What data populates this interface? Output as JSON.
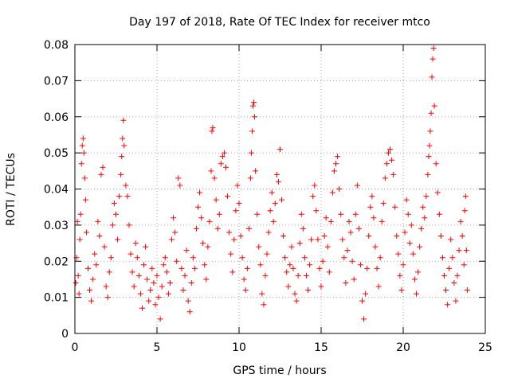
{
  "chart_data": {
    "type": "scatter",
    "title": "Day 197 of 2018, Rate Of TEC Index for receiver mtco",
    "xlabel": "GPS time / hours",
    "ylabel": "ROTI / TECUs",
    "xlim": [
      0,
      25
    ],
    "ylim": [
      0,
      0.08
    ],
    "x_ticks": [
      0,
      5,
      10,
      15,
      20,
      25
    ],
    "y_ticks": [
      0,
      0.01,
      0.02,
      0.03,
      0.04,
      0.05,
      0.06,
      0.07,
      0.08
    ],
    "x_tick_labels": [
      "0",
      "5",
      "10",
      "15",
      "20",
      "25"
    ],
    "y_tick_labels": [
      "0",
      "0.01",
      "0.02",
      "0.03",
      "0.04",
      "0.05",
      "0.06",
      "0.07",
      "0.08"
    ],
    "grid": true,
    "marker": "+",
    "marker_color": "#ff0000",
    "series": [
      {
        "name": "ROTI",
        "points": [
          [
            0.05,
            0.014
          ],
          [
            0.1,
            0.021
          ],
          [
            0.15,
            0.031
          ],
          [
            0.2,
            0.016
          ],
          [
            0.25,
            0.011
          ],
          [
            0.3,
            0.026
          ],
          [
            0.35,
            0.033
          ],
          [
            0.4,
            0.047
          ],
          [
            0.45,
            0.052
          ],
          [
            0.5,
            0.054
          ],
          [
            0.55,
            0.05
          ],
          [
            0.6,
            0.043
          ],
          [
            0.65,
            0.037
          ],
          [
            0.7,
            0.028
          ],
          [
            0.8,
            0.018
          ],
          [
            0.9,
            0.012
          ],
          [
            1.0,
            0.009
          ],
          [
            1.1,
            0.015
          ],
          [
            1.2,
            0.022
          ],
          [
            1.3,
            0.019
          ],
          [
            1.4,
            0.031
          ],
          [
            1.5,
            0.027
          ],
          [
            1.6,
            0.044
          ],
          [
            1.7,
            0.046
          ],
          [
            1.8,
            0.024
          ],
          [
            1.9,
            0.013
          ],
          [
            2.0,
            0.01
          ],
          [
            2.1,
            0.017
          ],
          [
            2.2,
            0.021
          ],
          [
            2.3,
            0.03
          ],
          [
            2.4,
            0.036
          ],
          [
            2.5,
            0.033
          ],
          [
            2.6,
            0.026
          ],
          [
            2.7,
            0.038
          ],
          [
            2.8,
            0.044
          ],
          [
            2.85,
            0.049
          ],
          [
            2.9,
            0.054
          ],
          [
            2.95,
            0.059
          ],
          [
            3.0,
            0.052
          ],
          [
            3.1,
            0.041
          ],
          [
            3.2,
            0.038
          ],
          [
            3.3,
            0.03
          ],
          [
            3.4,
            0.022
          ],
          [
            3.5,
            0.017
          ],
          [
            3.6,
            0.013
          ],
          [
            3.7,
            0.025
          ],
          [
            3.8,
            0.021
          ],
          [
            3.9,
            0.016
          ],
          [
            4.0,
            0.011
          ],
          [
            4.1,
            0.007
          ],
          [
            4.2,
            0.019
          ],
          [
            4.3,
            0.024
          ],
          [
            4.4,
            0.015
          ],
          [
            4.5,
            0.009
          ],
          [
            4.6,
            0.012
          ],
          [
            4.7,
            0.018
          ],
          [
            4.8,
            0.014
          ],
          [
            4.9,
            0.008
          ],
          [
            5.0,
            0.016
          ],
          [
            5.1,
            0.01
          ],
          [
            5.2,
            0.004
          ],
          [
            5.3,
            0.013
          ],
          [
            5.4,
            0.019
          ],
          [
            5.5,
            0.021
          ],
          [
            5.6,
            0.017
          ],
          [
            5.7,
            0.011
          ],
          [
            5.8,
            0.014
          ],
          [
            5.9,
            0.026
          ],
          [
            6.0,
            0.032
          ],
          [
            6.1,
            0.028
          ],
          [
            6.2,
            0.02
          ],
          [
            6.3,
            0.043
          ],
          [
            6.4,
            0.041
          ],
          [
            6.5,
            0.018
          ],
          [
            6.6,
            0.012
          ],
          [
            6.7,
            0.016
          ],
          [
            6.8,
            0.023
          ],
          [
            6.9,
            0.009
          ],
          [
            7.0,
            0.006
          ],
          [
            7.1,
            0.014
          ],
          [
            7.2,
            0.021
          ],
          [
            7.3,
            0.018
          ],
          [
            7.4,
            0.029
          ],
          [
            7.5,
            0.035
          ],
          [
            7.6,
            0.039
          ],
          [
            7.7,
            0.032
          ],
          [
            7.8,
            0.025
          ],
          [
            7.9,
            0.019
          ],
          [
            8.0,
            0.015
          ],
          [
            8.1,
            0.024
          ],
          [
            8.2,
            0.031
          ],
          [
            8.3,
            0.045
          ],
          [
            8.35,
            0.056
          ],
          [
            8.4,
            0.057
          ],
          [
            8.5,
            0.043
          ],
          [
            8.6,
            0.037
          ],
          [
            8.7,
            0.029
          ],
          [
            8.8,
            0.033
          ],
          [
            8.9,
            0.047
          ],
          [
            9.0,
            0.049
          ],
          [
            9.1,
            0.05
          ],
          [
            9.2,
            0.046
          ],
          [
            9.3,
            0.038
          ],
          [
            9.4,
            0.028
          ],
          [
            9.5,
            0.022
          ],
          [
            9.6,
            0.017
          ],
          [
            9.7,
            0.026
          ],
          [
            9.8,
            0.034
          ],
          [
            9.9,
            0.041
          ],
          [
            10.0,
            0.036
          ],
          [
            10.1,
            0.027
          ],
          [
            10.2,
            0.021
          ],
          [
            10.3,
            0.015
          ],
          [
            10.4,
            0.012
          ],
          [
            10.5,
            0.018
          ],
          [
            10.6,
            0.029
          ],
          [
            10.7,
            0.043
          ],
          [
            10.75,
            0.05
          ],
          [
            10.8,
            0.056
          ],
          [
            10.85,
            0.063
          ],
          [
            10.9,
            0.064
          ],
          [
            10.95,
            0.06
          ],
          [
            11.0,
            0.045
          ],
          [
            11.1,
            0.033
          ],
          [
            11.2,
            0.024
          ],
          [
            11.3,
            0.019
          ],
          [
            11.4,
            0.011
          ],
          [
            11.5,
            0.008
          ],
          [
            11.6,
            0.016
          ],
          [
            11.7,
            0.022
          ],
          [
            11.8,
            0.028
          ],
          [
            11.9,
            0.034
          ],
          [
            12.0,
            0.039
          ],
          [
            12.1,
            0.031
          ],
          [
            12.2,
            0.036
          ],
          [
            12.3,
            0.044
          ],
          [
            12.4,
            0.042
          ],
          [
            12.5,
            0.051
          ],
          [
            12.6,
            0.037
          ],
          [
            12.7,
            0.027
          ],
          [
            12.8,
            0.021
          ],
          [
            12.9,
            0.017
          ],
          [
            13.0,
            0.013
          ],
          [
            13.1,
            0.019
          ],
          [
            13.2,
            0.024
          ],
          [
            13.3,
            0.018
          ],
          [
            13.4,
            0.011
          ],
          [
            13.5,
            0.009
          ],
          [
            13.6,
            0.016
          ],
          [
            13.7,
            0.025
          ],
          [
            13.8,
            0.033
          ],
          [
            13.9,
            0.029
          ],
          [
            14.0,
            0.021
          ],
          [
            14.1,
            0.016
          ],
          [
            14.2,
            0.012
          ],
          [
            14.3,
            0.019
          ],
          [
            14.4,
            0.026
          ],
          [
            14.5,
            0.038
          ],
          [
            14.6,
            0.041
          ],
          [
            14.7,
            0.034
          ],
          [
            14.8,
            0.026
          ],
          [
            14.9,
            0.018
          ],
          [
            15.0,
            0.013
          ],
          [
            15.1,
            0.02
          ],
          [
            15.2,
            0.027
          ],
          [
            15.3,
            0.032
          ],
          [
            15.4,
            0.024
          ],
          [
            15.5,
            0.017
          ],
          [
            15.6,
            0.031
          ],
          [
            15.7,
            0.039
          ],
          [
            15.8,
            0.045
          ],
          [
            15.9,
            0.047
          ],
          [
            16.0,
            0.049
          ],
          [
            16.1,
            0.04
          ],
          [
            16.2,
            0.033
          ],
          [
            16.3,
            0.026
          ],
          [
            16.4,
            0.021
          ],
          [
            16.5,
            0.014
          ],
          [
            16.6,
            0.023
          ],
          [
            16.7,
            0.031
          ],
          [
            16.8,
            0.028
          ],
          [
            16.9,
            0.02
          ],
          [
            17.0,
            0.015
          ],
          [
            17.1,
            0.033
          ],
          [
            17.2,
            0.041
          ],
          [
            17.3,
            0.029
          ],
          [
            17.4,
            0.019
          ],
          [
            17.5,
            0.009
          ],
          [
            17.6,
            0.004
          ],
          [
            17.7,
            0.011
          ],
          [
            17.8,
            0.018
          ],
          [
            17.9,
            0.027
          ],
          [
            18.0,
            0.035
          ],
          [
            18.1,
            0.038
          ],
          [
            18.2,
            0.032
          ],
          [
            18.3,
            0.024
          ],
          [
            18.4,
            0.018
          ],
          [
            18.5,
            0.013
          ],
          [
            18.6,
            0.021
          ],
          [
            18.7,
            0.031
          ],
          [
            18.8,
            0.036
          ],
          [
            18.9,
            0.043
          ],
          [
            19.0,
            0.047
          ],
          [
            19.1,
            0.05
          ],
          [
            19.2,
            0.051
          ],
          [
            19.3,
            0.048
          ],
          [
            19.4,
            0.044
          ],
          [
            19.5,
            0.035
          ],
          [
            19.6,
            0.027
          ],
          [
            19.7,
            0.022
          ],
          [
            19.8,
            0.016
          ],
          [
            19.9,
            0.012
          ],
          [
            20.0,
            0.019
          ],
          [
            20.1,
            0.028
          ],
          [
            20.2,
            0.037
          ],
          [
            20.3,
            0.033
          ],
          [
            20.4,
            0.025
          ],
          [
            20.5,
            0.03
          ],
          [
            20.6,
            0.022
          ],
          [
            20.7,
            0.015
          ],
          [
            20.8,
            0.011
          ],
          [
            20.9,
            0.017
          ],
          [
            21.0,
            0.024
          ],
          [
            21.1,
            0.029
          ],
          [
            21.2,
            0.035
          ],
          [
            21.3,
            0.032
          ],
          [
            21.4,
            0.038
          ],
          [
            21.5,
            0.044
          ],
          [
            21.55,
            0.049
          ],
          [
            21.6,
            0.052
          ],
          [
            21.65,
            0.056
          ],
          [
            21.7,
            0.061
          ],
          [
            21.75,
            0.071
          ],
          [
            21.8,
            0.076
          ],
          [
            21.85,
            0.079
          ],
          [
            21.9,
            0.063
          ],
          [
            22.0,
            0.047
          ],
          [
            22.1,
            0.039
          ],
          [
            22.2,
            0.033
          ],
          [
            22.3,
            0.027
          ],
          [
            22.4,
            0.021
          ],
          [
            22.5,
            0.016
          ],
          [
            22.6,
            0.012
          ],
          [
            22.7,
            0.008
          ],
          [
            22.8,
            0.018
          ],
          [
            22.9,
            0.026
          ],
          [
            23.0,
            0.021
          ],
          [
            23.1,
            0.014
          ],
          [
            23.2,
            0.009
          ],
          [
            23.3,
            0.016
          ],
          [
            23.4,
            0.023
          ],
          [
            23.5,
            0.031
          ],
          [
            23.6,
            0.027
          ],
          [
            23.7,
            0.019
          ],
          [
            23.75,
            0.034
          ],
          [
            23.8,
            0.038
          ],
          [
            23.85,
            0.023
          ],
          [
            23.9,
            0.012
          ]
        ]
      }
    ]
  }
}
